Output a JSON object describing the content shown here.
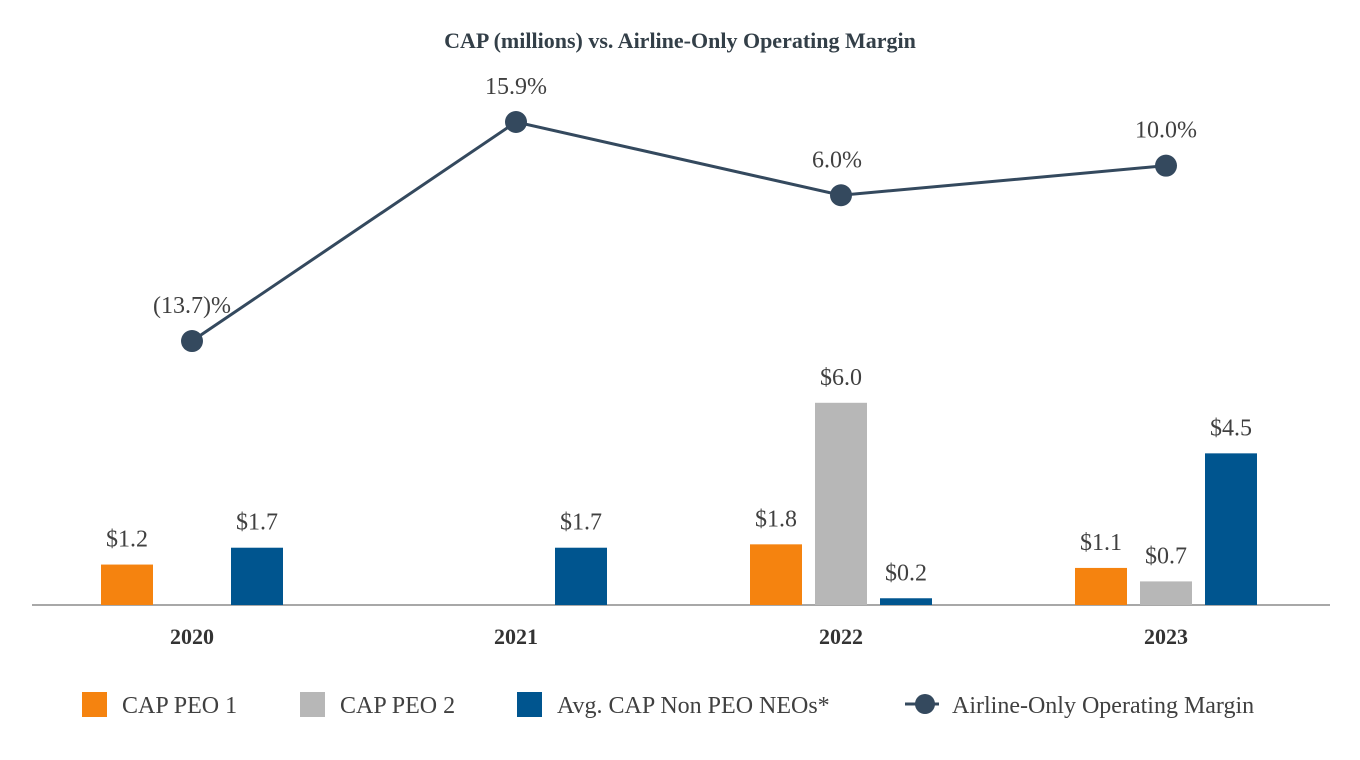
{
  "chart_data": {
    "type": "bar",
    "title": "CAP (millions) vs. Airline-Only Operating Margin",
    "categories": [
      "2020",
      "2021",
      "2022",
      "2023"
    ],
    "series": [
      {
        "name": "CAP PEO 1",
        "color": "#f5830f",
        "values": [
          1.2,
          null,
          1.8,
          1.1
        ],
        "labels": [
          "$1.2",
          "",
          "$1.8",
          "$1.1"
        ]
      },
      {
        "name": "CAP PEO 2",
        "color": "#b7b7b7",
        "values": [
          null,
          null,
          6.0,
          0.7
        ],
        "labels": [
          "",
          "",
          "$6.0",
          "$0.7"
        ]
      },
      {
        "name": "Avg. CAP Non PEO NEOs*",
        "color": "#00558f",
        "values": [
          1.7,
          1.7,
          0.2,
          4.5
        ],
        "labels": [
          "$1.7",
          "$1.7",
          "$0.2",
          "$4.5"
        ]
      }
    ],
    "line_series": {
      "name": "Airline-Only Operating Margin",
      "color": "#34495e",
      "values": [
        -13.7,
        15.9,
        6.0,
        10.0
      ],
      "labels": [
        "(13.7)%",
        "15.9%",
        "6.0%",
        "10.0%"
      ]
    },
    "ylim_bars": [
      0,
      8
    ],
    "ylim_line": [
      -28,
      16
    ],
    "legend_position": "bottom"
  }
}
